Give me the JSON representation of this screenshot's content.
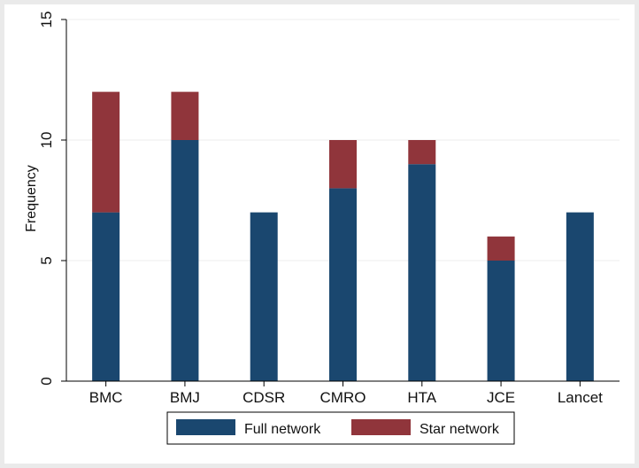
{
  "chart_data": {
    "type": "bar",
    "stacked": true,
    "categories": [
      "BMC",
      "BMJ",
      "CDSR",
      "CMRO",
      "HTA",
      "JCE",
      "Lancet"
    ],
    "series": [
      {
        "name": "Full network",
        "values": [
          7,
          10,
          7,
          8,
          9,
          5,
          7
        ],
        "color": "#1a476f"
      },
      {
        "name": "Star network",
        "values": [
          5,
          2,
          0,
          2,
          1,
          1,
          0
        ],
        "color": "#90353b"
      }
    ],
    "title": "",
    "xlabel": "",
    "ylabel": "Frequency",
    "ylim": [
      0,
      15
    ],
    "yticks": [
      0,
      5,
      10,
      15
    ],
    "grid": true,
    "legend_position": "bottom"
  },
  "colors": {
    "outer_background": "#eaeaea",
    "plot_background": "#ffffff",
    "gridline": "#eeeeee"
  }
}
